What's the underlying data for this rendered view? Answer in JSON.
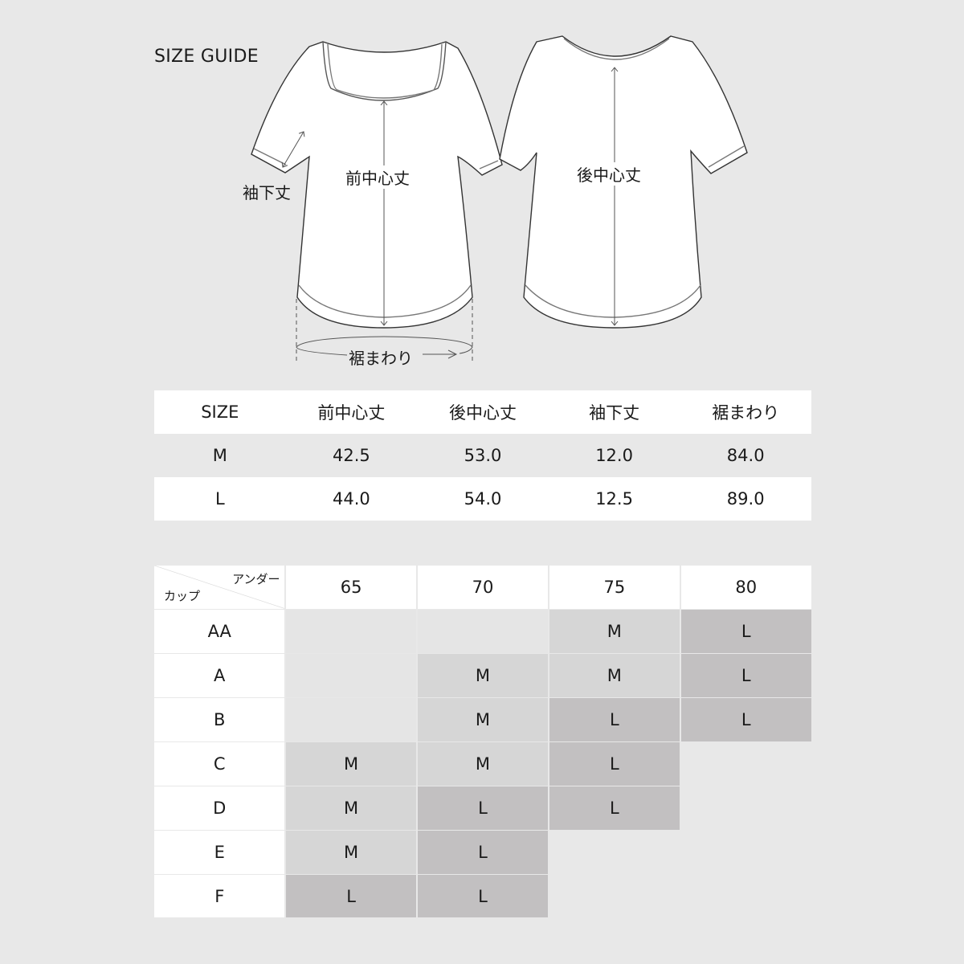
{
  "title": "SIZE GUIDE",
  "diagram": {
    "front_length": "前中心丈",
    "back_length": "後中心丈",
    "sleeve_length": "袖下丈",
    "hem_circumference": "裾まわり"
  },
  "size_table": {
    "headers": [
      "SIZE",
      "前中心丈",
      "後中心丈",
      "袖下丈",
      "裾まわり"
    ],
    "rows": [
      [
        "M",
        "42.5",
        "53.0",
        "12.0",
        "84.0"
      ],
      [
        "L",
        "44.0",
        "54.0",
        "12.5",
        "89.0"
      ]
    ]
  },
  "cup_table": {
    "under_label": "アンダー",
    "cup_label": "カップ",
    "unders": [
      "65",
      "70",
      "75",
      "80"
    ],
    "rows": [
      {
        "cup": "AA",
        "sizes": [
          "",
          "",
          "M",
          "L"
        ]
      },
      {
        "cup": "A",
        "sizes": [
          "",
          "M",
          "M",
          "L"
        ]
      },
      {
        "cup": "B",
        "sizes": [
          "",
          "M",
          "L",
          "L"
        ]
      },
      {
        "cup": "C",
        "sizes": [
          "M",
          "M",
          "L",
          ""
        ]
      },
      {
        "cup": "D",
        "sizes": [
          "M",
          "L",
          "L",
          ""
        ]
      },
      {
        "cup": "E",
        "sizes": [
          "M",
          "L",
          "",
          ""
        ]
      },
      {
        "cup": "F",
        "sizes": [
          "L",
          "L",
          "",
          ""
        ]
      }
    ]
  },
  "colors": {
    "background": "#e8e8e8",
    "size_m": "#d6d6d6",
    "size_l": "#c2c0c1",
    "not_available": "#e5e5e5"
  }
}
